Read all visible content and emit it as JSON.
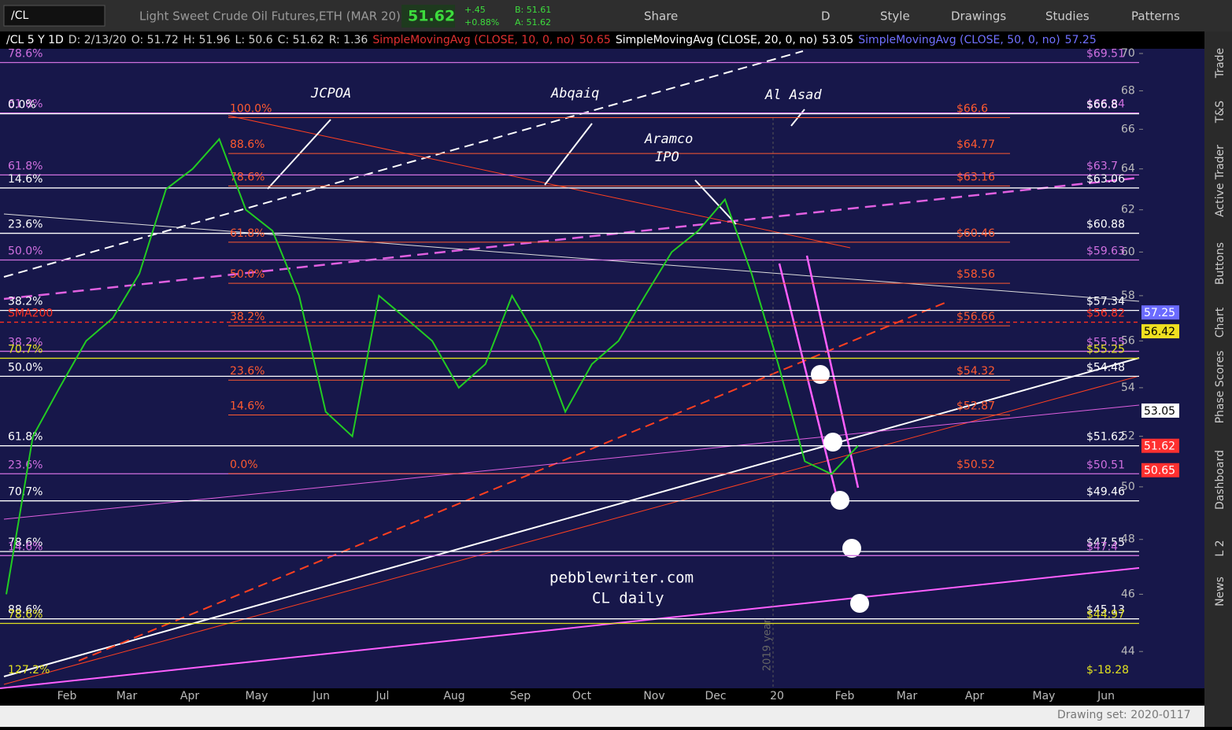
{
  "toolbar": {
    "symbol": "/CL",
    "description": "Light Sweet Crude Oil Futures,ETH (MAR 20)",
    "last": "51.62",
    "change": "+.45",
    "change_pct": "+0.88%",
    "bid": "B: 51.61",
    "ask": "A: 51.62",
    "buttons": [
      "Share",
      "D",
      "Style",
      "Drawings",
      "Studies",
      "Patterns"
    ]
  },
  "header": [
    {
      "text": "/CL 5 Y 1D",
      "color": "#ffffff"
    },
    {
      "text": "D: 2/13/20",
      "color": "#cccccc"
    },
    {
      "text": "O: 51.72",
      "color": "#cccccc"
    },
    {
      "text": "H: 51.96",
      "color": "#cccccc"
    },
    {
      "text": "L: 50.6",
      "color": "#cccccc"
    },
    {
      "text": "C: 51.62",
      "color": "#cccccc"
    },
    {
      "text": "R: 1.36",
      "color": "#cccccc"
    },
    {
      "text": "SimpleMovingAvg (CLOSE, 10, 0, no)",
      "color": "#e03030"
    },
    {
      "text": "50.65",
      "color": "#e03030"
    },
    {
      "text": "SimpleMovingAvg (CLOSE, 20, 0, no)",
      "color": "#ffffff"
    },
    {
      "text": "53.05",
      "color": "#ffffff"
    },
    {
      "text": "SimpleMovingAvg (CLOSE, 50, 0, no)",
      "color": "#7070ff"
    },
    {
      "text": "57.25",
      "color": "#7070ff"
    }
  ],
  "chart": {
    "log_scale": true,
    "ylim": [
      42.76,
      71.12
    ],
    "yticks": [
      44,
      46,
      48,
      50,
      52,
      54,
      56,
      58,
      60,
      62,
      64,
      66,
      68,
      70
    ],
    "months": [
      "Feb",
      "Mar",
      "Apr",
      "May",
      "Jun",
      "Jul",
      "Aug",
      "Sep",
      "Oct",
      "Nov",
      "Dec",
      "20",
      "Feb",
      "Mar",
      "Apr",
      "May",
      "Jun"
    ],
    "closes": [
      46,
      52,
      54,
      56,
      57,
      59,
      63,
      64,
      65.5,
      62,
      61,
      58,
      53,
      52,
      58,
      57,
      56,
      54,
      55,
      58,
      56,
      53,
      55,
      56,
      58,
      60,
      61,
      62.5,
      59,
      55,
      51,
      50.5,
      51.62
    ],
    "candle_color": "#22cc22",
    "levels": [
      {
        "value": 69.51,
        "label": "$69.51",
        "tag": "78.6%",
        "color": "#d070e0"
      },
      {
        "value": 66.84,
        "label": "$66.84",
        "tag": "61.8%",
        "color": "#d070e0"
      },
      {
        "value": 66.8,
        "label": "$66.8",
        "tag": "0.0%",
        "color": "#ffffff"
      },
      {
        "value": 63.7,
        "label": "$63.7",
        "tag": "61.8%",
        "color": "#d070e0"
      },
      {
        "value": 63.06,
        "label": "$63.06",
        "tag": "14.6%",
        "color": "#ffffff"
      },
      {
        "value": 60.88,
        "label": "$60.88",
        "tag": "23.6%",
        "color": "#ffffff"
      },
      {
        "value": 59.63,
        "label": "$59.63",
        "tag": "50.0%",
        "color": "#d070e0"
      },
      {
        "value": 57.34,
        "label": "$57.34",
        "tag": "38.2%",
        "color": "#ffffff"
      },
      {
        "value": 56.82,
        "label": "$56.82",
        "tag": "SMA200",
        "color": "#ff3020"
      },
      {
        "value": 55.55,
        "label": "$55.55",
        "tag": "38.2%",
        "color": "#d070e0"
      },
      {
        "value": 55.25,
        "label": "$55.25",
        "tag": "70.7%",
        "color": "#e0e020"
      },
      {
        "value": 54.48,
        "label": "$54.48",
        "tag": "50.0%",
        "color": "#ffffff"
      },
      {
        "value": 51.62,
        "label": "$51.62",
        "tag": "61.8%",
        "color": "#ffffff"
      },
      {
        "value": 50.51,
        "label": "$50.51",
        "tag": "23.6%",
        "color": "#d070e0"
      },
      {
        "value": 49.46,
        "label": "$49.46",
        "tag": "70.7%",
        "color": "#ffffff"
      },
      {
        "value": 47.55,
        "label": "$47.55",
        "tag": "78.6%",
        "color": "#ffffff"
      },
      {
        "value": 47.4,
        "label": "$47.4",
        "tag": "14.6%",
        "color": "#d070e0"
      },
      {
        "value": 45.13,
        "label": "$45.13",
        "tag": "88.6%",
        "color": "#ffffff"
      },
      {
        "value": 44.97,
        "label": "$44.97",
        "tag": "78.6%",
        "color": "#e0e020"
      },
      {
        "value": -18.28,
        "label": "$-18.28",
        "tag": "127.2%",
        "color": "#e0e020"
      }
    ],
    "fib_levels": [
      {
        "value": 66.6,
        "label": "$66.6",
        "tag": "100.0%"
      },
      {
        "value": 64.77,
        "label": "$64.77",
        "tag": "88.6%"
      },
      {
        "value": 63.16,
        "label": "$63.16",
        "tag": "78.6%"
      },
      {
        "value": 60.46,
        "label": "$60.46",
        "tag": "61.8%"
      },
      {
        "value": 58.56,
        "label": "$58.56",
        "tag": "50.0%"
      },
      {
        "value": 56.66,
        "label": "$56.66",
        "tag": "38.2%"
      },
      {
        "value": 54.32,
        "label": "$54.32",
        "tag": "23.6%"
      },
      {
        "value": 52.87,
        "label": "$52.87",
        "tag": "14.6%"
      },
      {
        "value": 50.52,
        "label": "$50.52",
        "tag": "0.0%"
      }
    ],
    "fib_color": "#ff5a30",
    "badges": [
      {
        "value": 57.25,
        "color": "#6b6bff"
      },
      {
        "value": 56.42,
        "color": "#f0e020"
      },
      {
        "value": 53.05,
        "color": "#ffffff"
      },
      {
        "value": 51.62,
        "color": "#ff3030"
      },
      {
        "value": 50.65,
        "color": "#ff3030"
      }
    ]
  },
  "annotations": [
    "JCPOA",
    "Abqaiq",
    "Al Asad",
    "Aramco",
    "IPO"
  ],
  "watermark": [
    "pebblewriter.com",
    "CL daily"
  ],
  "year_marker": "2019 year",
  "sidebar": [
    "Trade",
    "T&S",
    "Active Trader",
    "Buttons",
    "Chart",
    "Phase Scores",
    "Dashboard",
    "L 2",
    "News"
  ],
  "footer": "Drawing set: 2020-0117"
}
